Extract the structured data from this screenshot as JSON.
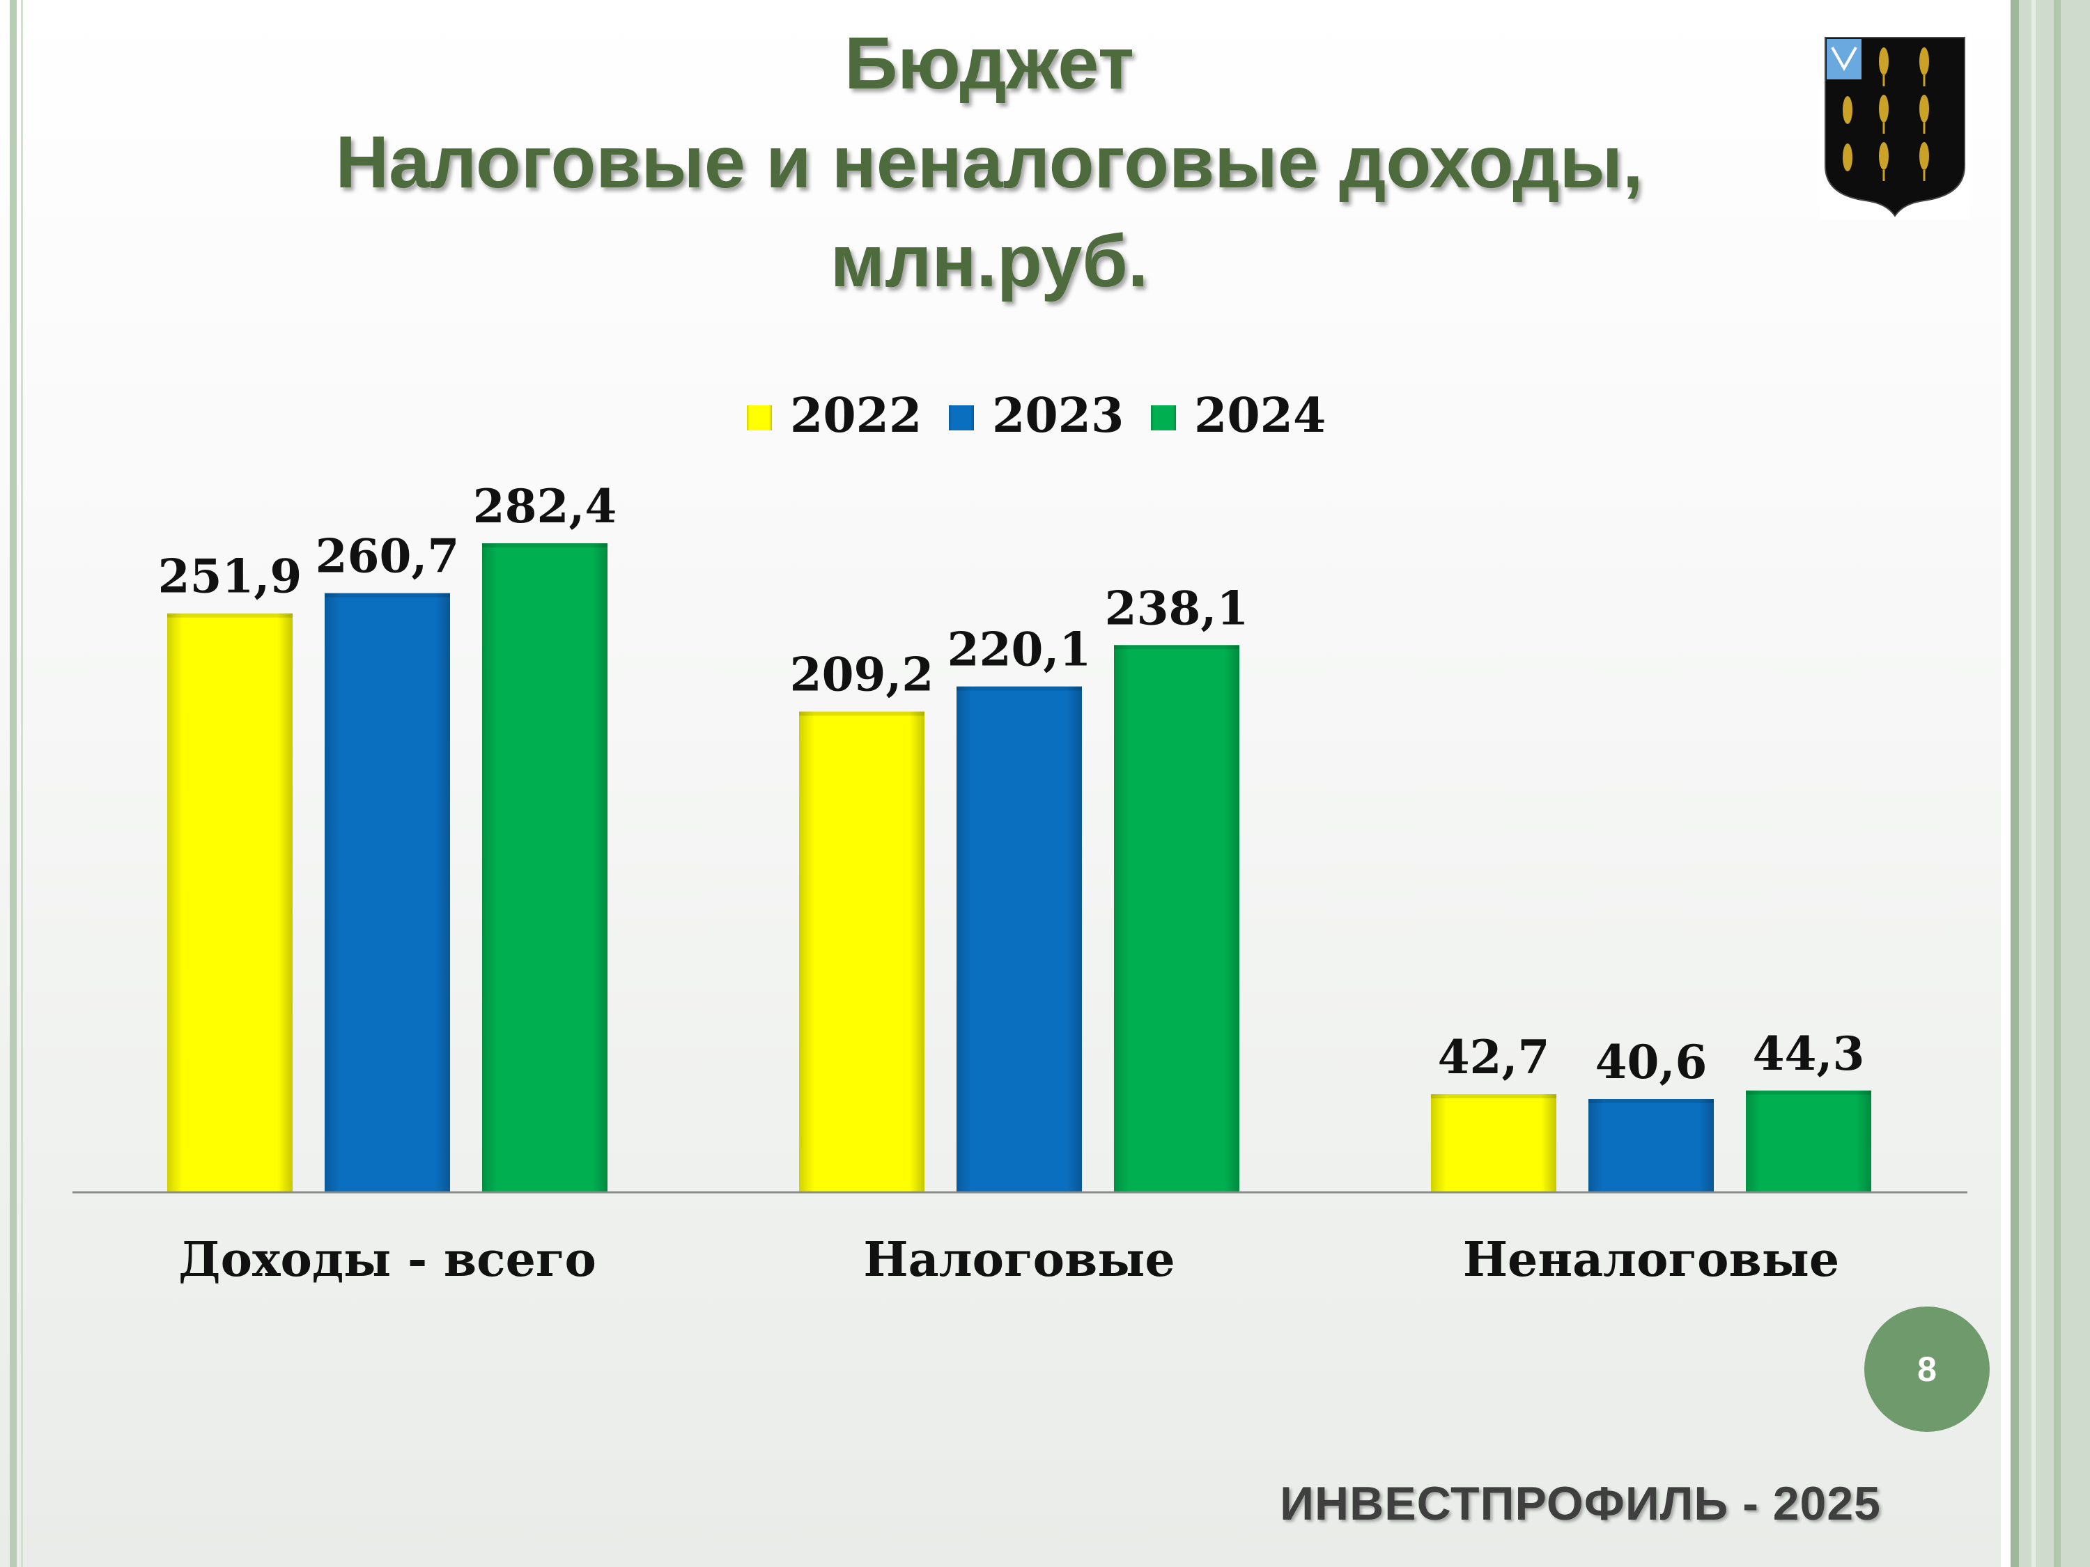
{
  "slide": {
    "title_lines": [
      "Бюджет",
      "Налоговые и неналоговые доходы,",
      "млн.руб."
    ],
    "page_number": "8",
    "footer": "ИНВЕСТПРОФИЛЬ - 2025",
    "emblem_icon": "coat-of-arms-wheat-icon"
  },
  "chart_data": {
    "type": "bar",
    "title": "",
    "xlabel": "",
    "ylabel": "",
    "categories": [
      "Доходы - всего",
      "Налоговые",
      "Неналоговые"
    ],
    "series": [
      {
        "name": "2022",
        "color": "#ffff00",
        "values": [
          251.9,
          209.2,
          42.7
        ],
        "labels": [
          "251,9",
          "209,2",
          "42,7"
        ]
      },
      {
        "name": "2023",
        "color": "#0b6fbf",
        "values": [
          260.7,
          220.1,
          40.6
        ],
        "labels": [
          "260,7",
          "220,1",
          "40,6"
        ]
      },
      {
        "name": "2024",
        "color": "#00b050",
        "values": [
          282.4,
          238.1,
          44.3
        ],
        "labels": [
          "282,4",
          "238,1",
          "44,3"
        ]
      }
    ],
    "ylim": [
      0,
      300
    ],
    "grid": false,
    "legend_position": "top"
  }
}
